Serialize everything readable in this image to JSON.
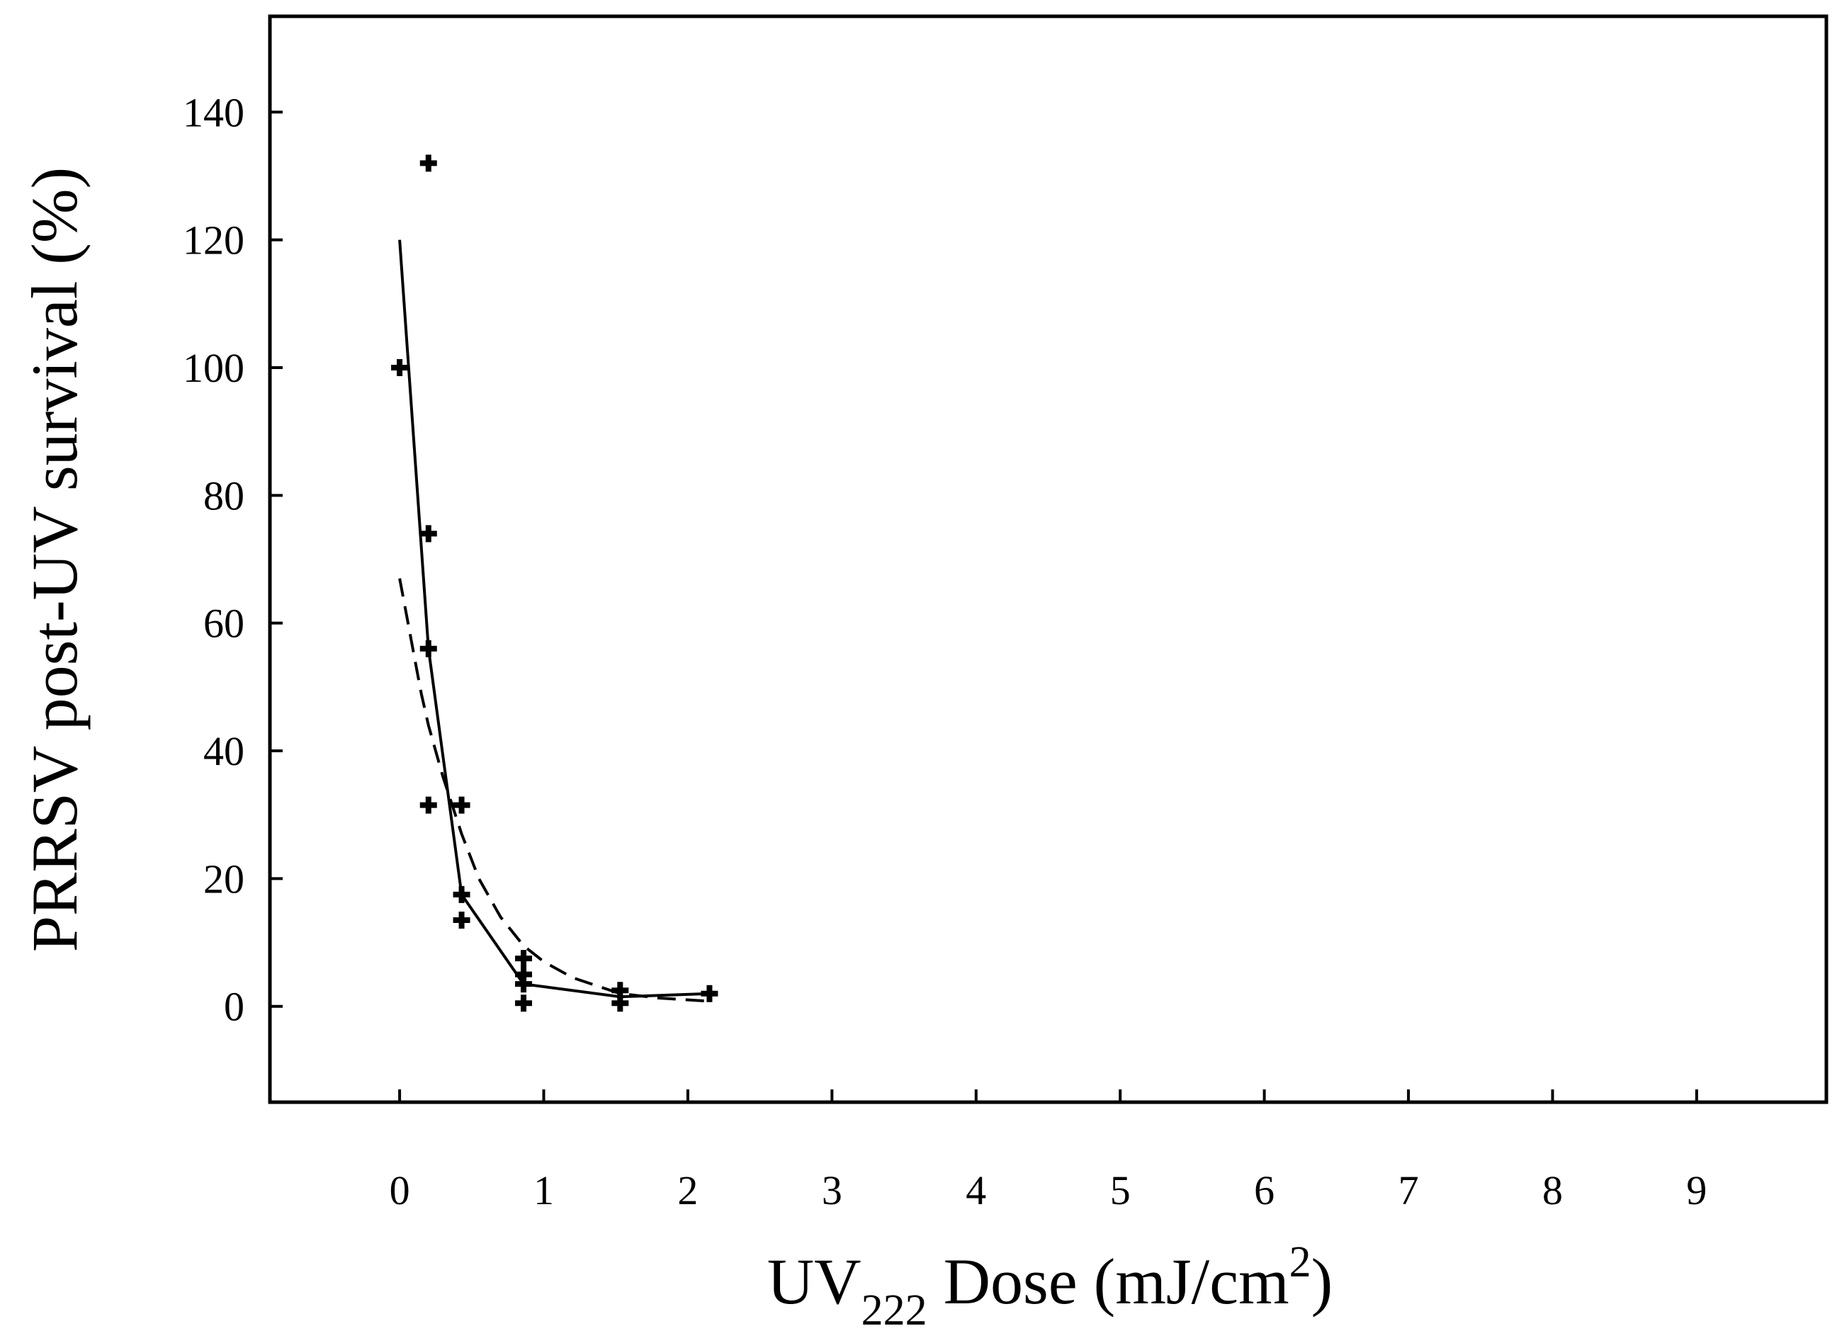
{
  "chart_data": {
    "type": "scatter",
    "xlabel": {
      "pre": "UV",
      "sub": "222",
      "mid": " Dose (mJ/cm",
      "sup": "2",
      "post": ")"
    },
    "ylabel": "PRRSV post-UV survival (%)",
    "xlim": [
      -0.9,
      9.9
    ],
    "ylim": [
      -15,
      155
    ],
    "xticks": [
      0,
      1,
      2,
      3,
      4,
      5,
      6,
      7,
      8,
      9
    ],
    "yticks": [
      0,
      20,
      40,
      60,
      80,
      100,
      120,
      140
    ],
    "grid": false,
    "series": [
      {
        "kind": "points",
        "marker": "plus",
        "x": [
          0,
          0.2,
          0.2,
          0.2,
          0.2,
          0.43,
          0.43,
          0.43,
          0.86,
          0.86,
          0.86,
          0.86,
          1.53,
          1.53,
          2.15
        ],
        "y": [
          100,
          132,
          74,
          56,
          31.5,
          31.5,
          17.5,
          13.5,
          7.5,
          5,
          3.5,
          0.5,
          2.5,
          0.5,
          2
        ]
      },
      {
        "kind": "line",
        "style": "solid",
        "x": [
          0,
          0.2,
          0.43,
          0.86,
          1.53,
          2.15
        ],
        "y": [
          120,
          56,
          17.5,
          3.5,
          1.5,
          2
        ]
      },
      {
        "kind": "line",
        "style": "dashed",
        "x": [
          0,
          0.05,
          0.1,
          0.15,
          0.2,
          0.3,
          0.43,
          0.55,
          0.7,
          0.86,
          1.0,
          1.2,
          1.53,
          1.8,
          2.15
        ],
        "y": [
          67,
          61,
          55,
          49,
          44,
          36,
          27,
          20,
          14,
          9.5,
          7,
          4.5,
          2,
          1.3,
          0.8
        ]
      }
    ]
  }
}
